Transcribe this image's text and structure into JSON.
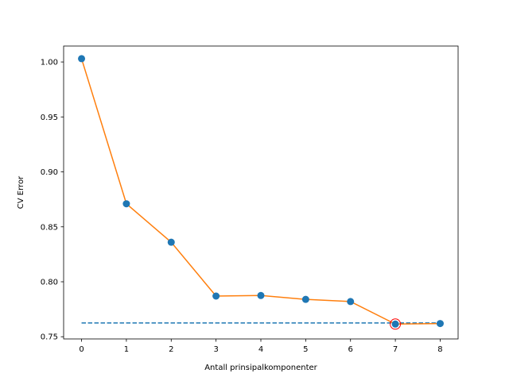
{
  "chart_data": {
    "type": "line",
    "title": "",
    "xlabel": "Antall prinsipalkomponenter",
    "ylabel": "CV Error",
    "xlim": [
      -0.4,
      8.4
    ],
    "ylim": [
      0.748,
      1.0145
    ],
    "x_ticks": [
      0,
      1,
      2,
      3,
      4,
      5,
      6,
      7,
      8
    ],
    "x_tick_labels": [
      "0",
      "1",
      "2",
      "3",
      "4",
      "5",
      "6",
      "7",
      "8"
    ],
    "y_ticks": [
      0.75,
      0.8,
      0.85,
      0.9,
      0.95,
      1.0
    ],
    "y_tick_labels": [
      "0.75",
      "0.80",
      "0.85",
      "0.90",
      "0.95",
      "1.00"
    ],
    "grid": false,
    "series": [
      {
        "x": [
          0,
          1,
          2,
          3,
          4,
          5,
          6,
          7,
          8
        ],
        "values": [
          1.003,
          0.871,
          0.836,
          0.787,
          0.7875,
          0.784,
          0.782,
          0.7615,
          0.762
        ],
        "line_color": "#ff7f0e",
        "marker_color": "#1f77b4"
      }
    ],
    "reference_line": {
      "y": 0.7625,
      "x_range": [
        0,
        8
      ],
      "style": "dashed",
      "color": "#1f77b4"
    },
    "highlight": {
      "x": 7,
      "y": 0.7615,
      "color": "#ff0000"
    }
  }
}
